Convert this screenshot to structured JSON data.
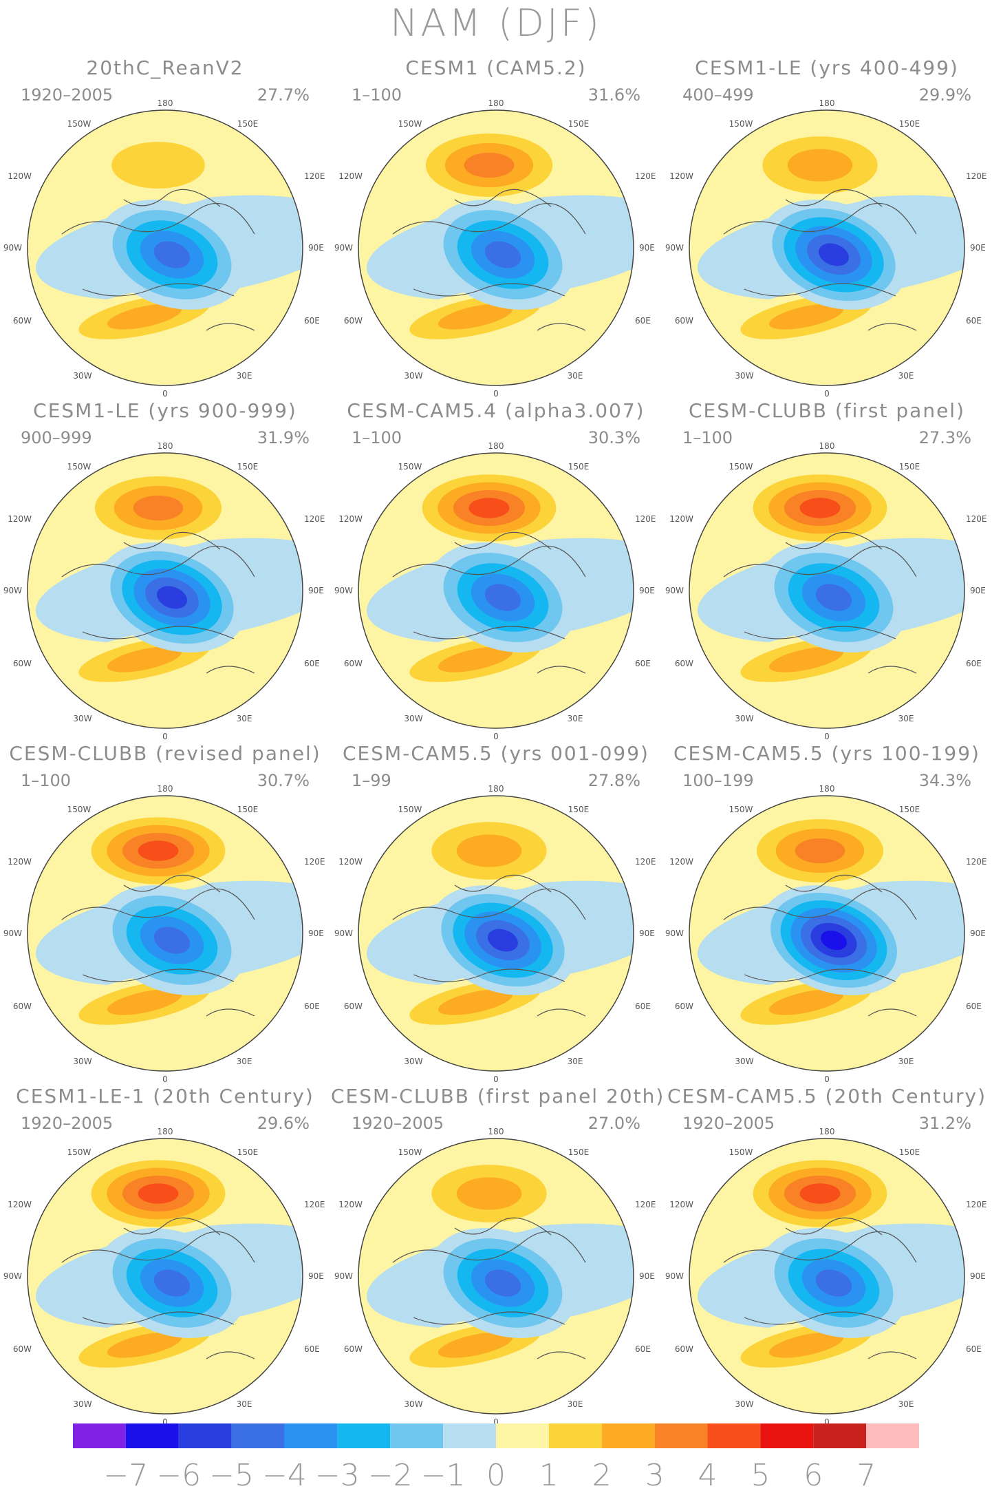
{
  "figure_title": "NAM (DJF)",
  "colors": {
    "scale": [
      "#7f22e6",
      "#1a10ea",
      "#2a3ee0",
      "#3b6fe6",
      "#2a93f2",
      "#14b7f0",
      "#6fc6ef",
      "#b6ddf0",
      "#fdf5a3",
      "#fdd33a",
      "#fcab22",
      "#fa8226",
      "#f74e1a",
      "#e8120f",
      "#c9221e",
      "#fdbbbb"
    ]
  },
  "colorbar": {
    "labels": [
      "−7",
      "−6",
      "−5",
      "−4",
      "−3",
      "−2",
      "−1",
      "0",
      "1",
      "2",
      "3",
      "4",
      "5",
      "6",
      "7"
    ]
  },
  "map_labels": {
    "top": "180",
    "upper_left": "150W",
    "upper_right": "150E",
    "left_upper": "120W",
    "right_upper": "120E",
    "left": "90W",
    "right": "90E",
    "left_lower": "60W",
    "right_lower": "60E",
    "lower_left": "30W",
    "lower_right": "30E",
    "bottom": "0"
  },
  "panels": [
    {
      "title": "20thC_ReanV2",
      "years": "1920–2005",
      "pct": "27.7%",
      "icon": "polar-map-icon"
    },
    {
      "title": "CESM1 (CAM5.2)",
      "years": "1–100",
      "pct": "31.6%",
      "icon": "polar-map-icon"
    },
    {
      "title": "CESM1-LE (yrs 400-499)",
      "years": "400–499",
      "pct": "29.9%",
      "icon": "polar-map-icon"
    },
    {
      "title": "CESM1-LE (yrs 900-999)",
      "years": "900–999",
      "pct": "31.9%",
      "icon": "polar-map-icon"
    },
    {
      "title": "CESM-CAM5.4 (alpha3.007)",
      "years": "1–100",
      "pct": "30.3%",
      "icon": "polar-map-icon"
    },
    {
      "title": "CESM-CLUBB (first panel)",
      "years": "1–100",
      "pct": "27.3%",
      "icon": "polar-map-icon"
    },
    {
      "title": "CESM-CLUBB (revised panel)",
      "years": "1–100",
      "pct": "30.7%",
      "icon": "polar-map-icon"
    },
    {
      "title": "CESM-CAM5.5 (yrs 001-099)",
      "years": "1–99",
      "pct": "27.8%",
      "icon": "polar-map-icon"
    },
    {
      "title": "CESM-CAM5.5 (yrs 100-199)",
      "years": "100–199",
      "pct": "34.3%",
      "icon": "polar-map-icon"
    },
    {
      "title": "CESM1-LE-1 (20th Century)",
      "years": "1920–2005",
      "pct": "29.6%",
      "icon": "polar-map-icon"
    },
    {
      "title": "CESM-CLUBB (first panel 20th)",
      "years": "1920–2005",
      "pct": "27.0%",
      "icon": "polar-map-icon"
    },
    {
      "title": "CESM-CAM5.5 (20th Century)",
      "years": "1920–2005",
      "pct": "31.2%",
      "icon": "polar-map-icon"
    }
  ]
}
